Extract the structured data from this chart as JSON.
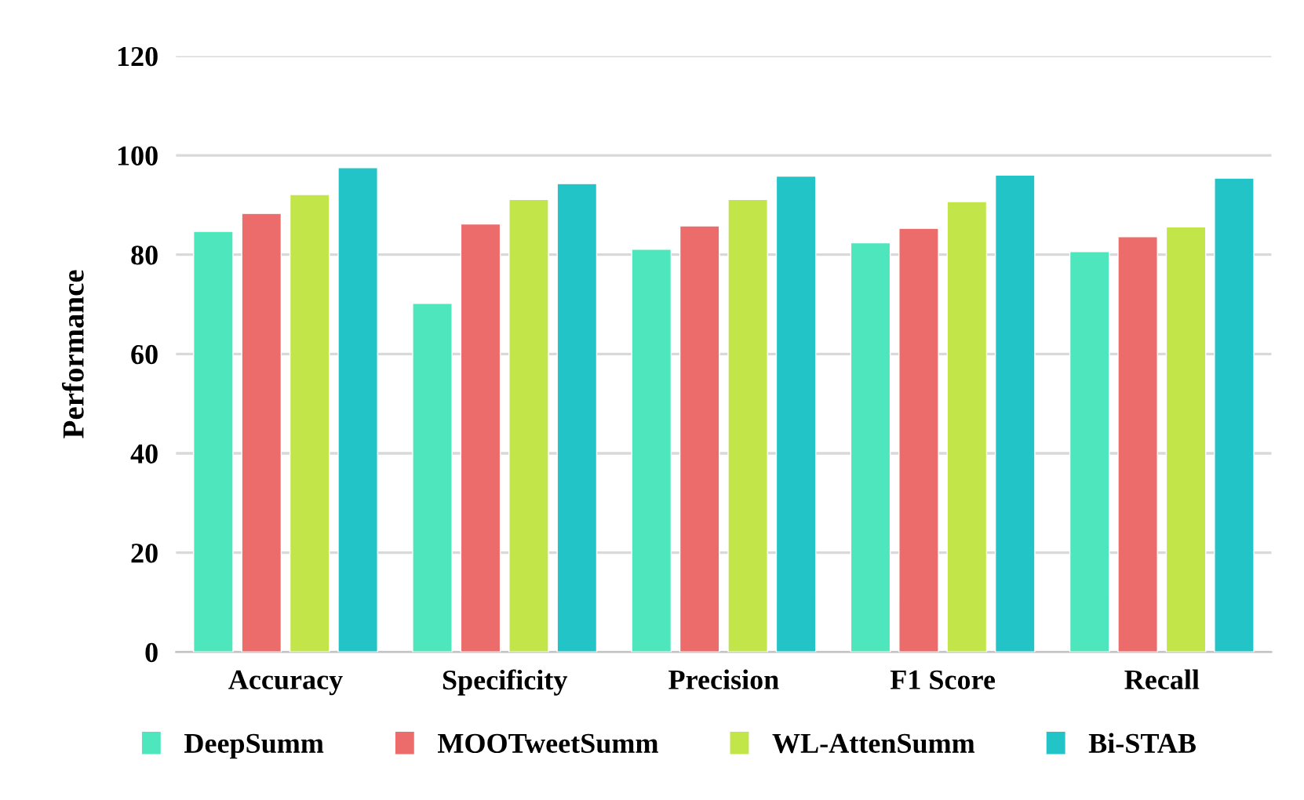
{
  "chart_data": {
    "type": "bar",
    "ylabel": "Performance",
    "categories": [
      "Accuracy",
      "Specificity",
      "Precision",
      "F1 Score",
      "Recall"
    ],
    "series": [
      {
        "name": "DeepSumm",
        "color": "#4ee6bd",
        "values": [
          84.7,
          70.2,
          81.1,
          82.4,
          80.6
        ]
      },
      {
        "name": "MOOTweetSumm",
        "color": "#ec6b6b",
        "values": [
          88.3,
          86.2,
          85.8,
          85.3,
          83.6
        ]
      },
      {
        "name": "WL-AttenSumm",
        "color": "#c2e64a",
        "values": [
          92.1,
          91.1,
          91.1,
          90.7,
          85.6
        ]
      },
      {
        "name": "Bi-STAB",
        "color": "#22c4c8",
        "values": [
          97.5,
          94.3,
          95.8,
          96.0,
          95.4
        ]
      }
    ],
    "ylim": [
      0,
      120
    ],
    "yticks": [
      0,
      20,
      40,
      60,
      80,
      100,
      120
    ],
    "grid": "y",
    "legend": "bottom"
  }
}
